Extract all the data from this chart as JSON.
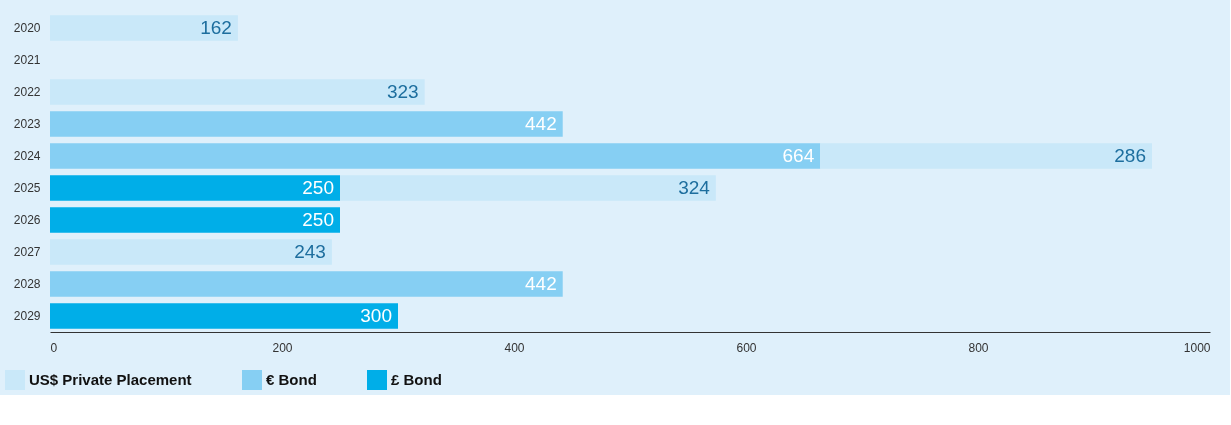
{
  "chart_data": {
    "type": "bar",
    "orientation": "horizontal",
    "stacked": true,
    "categories": [
      "2020",
      "2021",
      "2022",
      "2023",
      "2024",
      "2025",
      "2026",
      "2027",
      "2028",
      "2029"
    ],
    "series": [
      {
        "name": "£ Bond",
        "color": "#00aee8",
        "values": [
          null,
          null,
          null,
          null,
          null,
          250,
          250,
          null,
          null,
          300
        ]
      },
      {
        "name": "€ Bond",
        "color": "#86cff3",
        "values": [
          null,
          null,
          null,
          442,
          664,
          null,
          null,
          null,
          442,
          null
        ]
      },
      {
        "name": "US$ Private Placement",
        "color": "#c9e8f9",
        "values": [
          162,
          null,
          323,
          null,
          286,
          324,
          null,
          243,
          null,
          null
        ]
      }
    ],
    "xlim": [
      0,
      1000
    ],
    "xticks": [
      0,
      200,
      400,
      600,
      800,
      1000
    ],
    "grid": false,
    "legend": "bottom left",
    "data_labels": true
  }
}
